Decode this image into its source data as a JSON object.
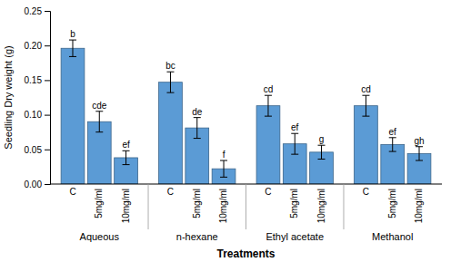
{
  "chart_data": {
    "type": "bar",
    "categories": [
      "Aqueous",
      "n-hexane",
      "Ethyl acetate",
      "Methanol"
    ],
    "series": [
      {
        "name": "C",
        "color": "#5B9BD5",
        "values": [
          0.196,
          0.147,
          0.113,
          0.113
        ],
        "errors": [
          0.012,
          0.015,
          0.015,
          0.015
        ],
        "letters": [
          "b",
          "bc",
          "cd",
          "cd"
        ]
      },
      {
        "name": "5mg/ml",
        "color": "#5B9BD5",
        "values": [
          0.09,
          0.081,
          0.058,
          0.057
        ],
        "errors": [
          0.015,
          0.015,
          0.015,
          0.01
        ],
        "letters": [
          "cde",
          "de",
          "ef",
          "ef"
        ]
      },
      {
        "name": "10mg/ml",
        "color": "#5B9BD5",
        "values": [
          0.038,
          0.022,
          0.046,
          0.044
        ],
        "errors": [
          0.01,
          0.012,
          0.01,
          0.01
        ],
        "letters": [
          "ef",
          "f",
          "g",
          "gh"
        ]
      }
    ],
    "xlabel": "Treatments",
    "ylabel": "Seedling Dry weight (g)",
    "ylim": [
      0,
      0.25
    ],
    "yticks": [
      {
        "value": 0,
        "label": "0.00"
      },
      0.05,
      {
        "value": 0.1,
        "label": "0.10"
      },
      0.15,
      {
        "value": 0.2,
        "label": "0.20"
      },
      0.25
    ],
    "grid": false
  }
}
